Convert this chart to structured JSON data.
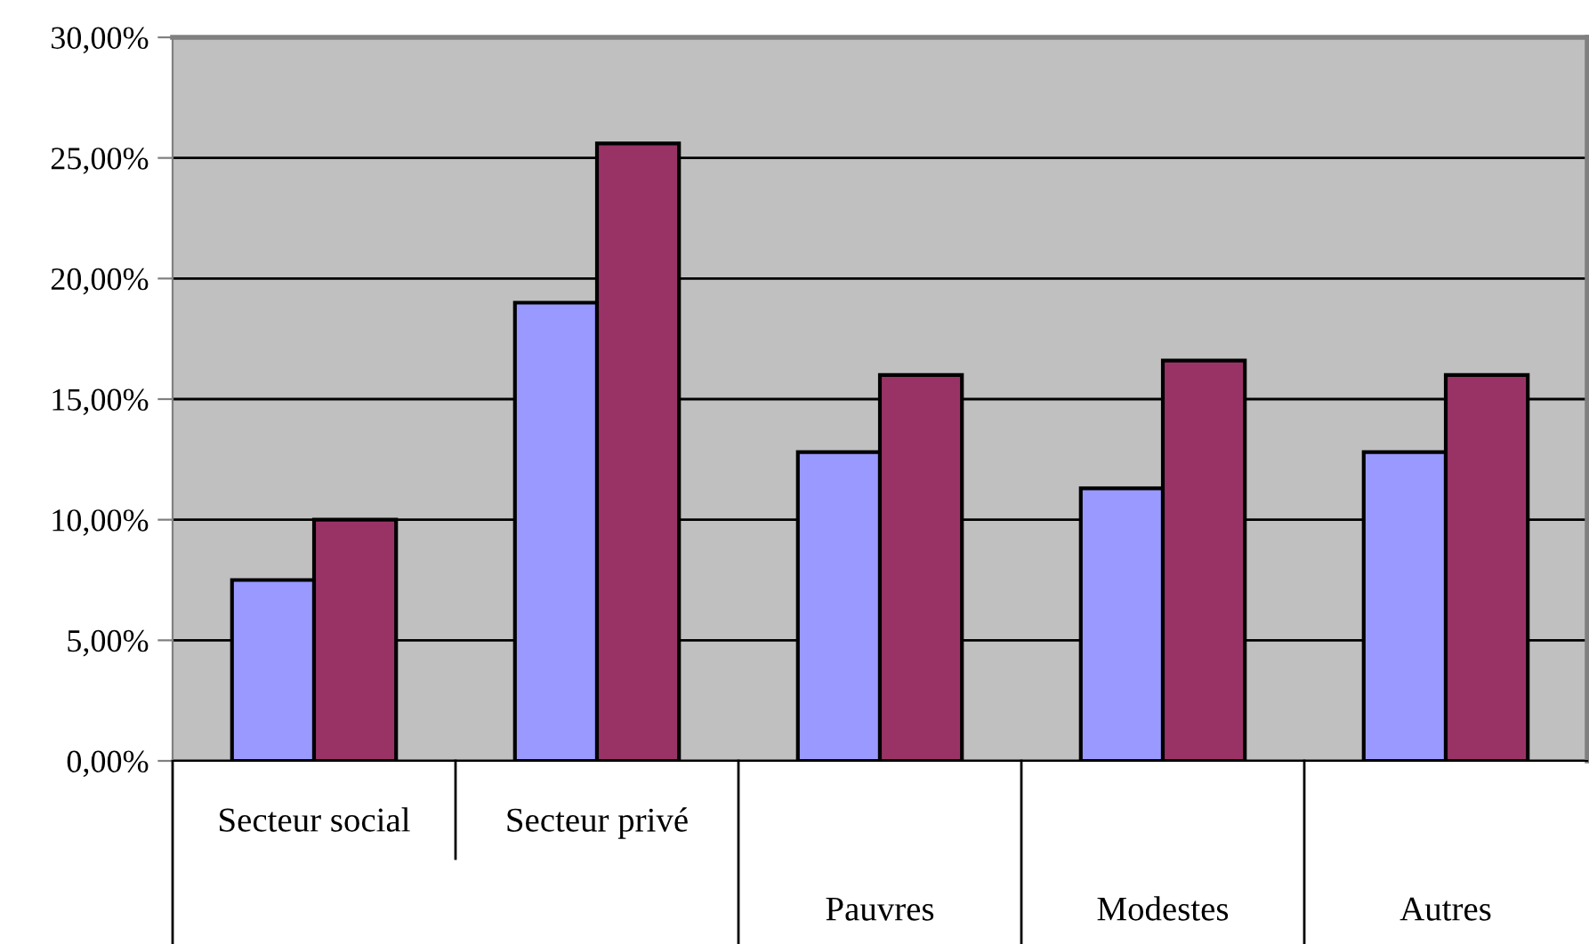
{
  "chart_data": {
    "type": "bar",
    "categories": [
      "Secteur social",
      "Secteur privé",
      "Pauvres",
      "Modestes",
      "Autres"
    ],
    "series": [
      {
        "color": "#9999ff",
        "values": [
          7.5,
          19.0,
          12.8,
          11.3,
          12.8
        ]
      },
      {
        "color": "#993366",
        "values": [
          10.0,
          25.6,
          16.0,
          16.6,
          16.0
        ]
      }
    ],
    "ylim": [
      0,
      30
    ],
    "yticks": [
      {
        "value": 0,
        "label": "0,00%"
      },
      {
        "value": 5,
        "label": "5,00%"
      },
      {
        "value": 10,
        "label": "10,00%"
      },
      {
        "value": 15,
        "label": "15,00%"
      },
      {
        "value": 20,
        "label": "20,00%"
      },
      {
        "value": 25,
        "label": "25,00%"
      },
      {
        "value": 30,
        "label": "30,00%"
      }
    ],
    "grid": "y",
    "legend": false
  }
}
